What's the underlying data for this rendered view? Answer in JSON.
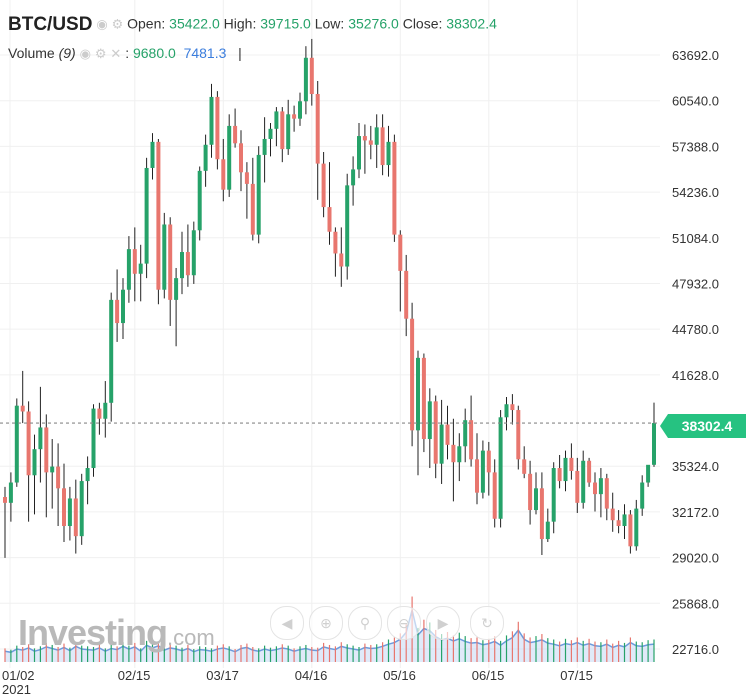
{
  "header": {
    "symbol": "BTC/USD",
    "open_label": "Open:",
    "open": "35422.0",
    "high_label": "High:",
    "high": "39715.0",
    "low_label": "Low:",
    "low": "35276.0",
    "close_label": "Close:",
    "close": "38302.4",
    "volume_label": "Volume",
    "volume_period": "(9)",
    "volume_value": "9680.0",
    "volume_ma": "7481.3",
    "separator": "|"
  },
  "icons": [
    "eye-icon",
    "gear-icon",
    "close-icon"
  ],
  "logo": {
    "brand": "Investing",
    "suffix": ".com"
  },
  "last_price_tag": "38302.4",
  "colors": {
    "up": "#26a269",
    "down": "#e8766e",
    "wick": "#222222",
    "last_line": "#888888",
    "tag": "#26c281",
    "volume_area": "#c7d9f4",
    "volume_line": "#6d9bdc"
  },
  "chart_data": {
    "type": "candlestick",
    "title": "BTC/USD",
    "yaxis": {
      "ticks": [
        "63692.0",
        "60540.0",
        "57388.0",
        "54236.0",
        "51084.0",
        "47932.0",
        "44780.0",
        "41628.0",
        "38302.4",
        "35324.0",
        "32172.0",
        "29020.0",
        "25868.0",
        "22716.0"
      ],
      "range": [
        21800,
        65200
      ]
    },
    "xaxis": {
      "ticks": [
        "01/02",
        "02/15",
        "03/17",
        "04/16",
        "05/16",
        "06/15",
        "07/15"
      ],
      "year": "2021"
    },
    "last_close": 38302.4,
    "candles": [
      [
        33200,
        33900,
        29000,
        32800
      ],
      [
        32800,
        34900,
        31500,
        34200
      ],
      [
        34200,
        40000,
        33900,
        39500
      ],
      [
        39500,
        41900,
        38300,
        39100
      ],
      [
        39100,
        39800,
        31500,
        34700
      ],
      [
        34700,
        37500,
        32000,
        36500
      ],
      [
        36500,
        40800,
        34200,
        38000
      ],
      [
        38000,
        38900,
        31800,
        34900
      ],
      [
        34900,
        37200,
        32400,
        35300
      ],
      [
        35300,
        36900,
        31200,
        33800
      ],
      [
        33800,
        35500,
        30100,
        31200
      ],
      [
        31200,
        33900,
        30200,
        33100
      ],
      [
        33100,
        34400,
        29300,
        30500
      ],
      [
        30500,
        34800,
        29900,
        34300
      ],
      [
        34300,
        36000,
        32700,
        35200
      ],
      [
        35200,
        39600,
        34600,
        39300
      ],
      [
        39300,
        39700,
        37500,
        38600
      ],
      [
        38600,
        41200,
        37300,
        39700
      ],
      [
        39700,
        47300,
        38400,
        46800
      ],
      [
        46800,
        48900,
        43900,
        45200
      ],
      [
        45200,
        48300,
        44100,
        47500
      ],
      [
        47500,
        51200,
        46600,
        50300
      ],
      [
        50300,
        51800,
        46700,
        48600
      ],
      [
        48600,
        50600,
        46700,
        49300
      ],
      [
        49300,
        56600,
        48300,
        55900
      ],
      [
        55900,
        58300,
        55100,
        57700
      ],
      [
        57700,
        57900,
        46500,
        47500
      ],
      [
        47500,
        52800,
        46900,
        52000
      ],
      [
        52000,
        52500,
        45000,
        46800
      ],
      [
        46800,
        49000,
        43600,
        48300
      ],
      [
        48300,
        51500,
        47200,
        50100
      ],
      [
        50100,
        52000,
        47700,
        48500
      ],
      [
        48500,
        52200,
        47900,
        51600
      ],
      [
        51600,
        56000,
        50900,
        55700
      ],
      [
        55700,
        58200,
        54600,
        57500
      ],
      [
        57500,
        61700,
        56600,
        60800
      ],
      [
        60800,
        61200,
        55800,
        56500
      ],
      [
        56500,
        57900,
        53600,
        54400
      ],
      [
        54400,
        59600,
        53900,
        58800
      ],
      [
        58800,
        60000,
        57300,
        57600
      ],
      [
        57600,
        58500,
        54300,
        55600
      ],
      [
        55600,
        56300,
        52400,
        54800
      ],
      [
        54800,
        56600,
        50900,
        51300
      ],
      [
        51300,
        57400,
        50700,
        56800
      ],
      [
        56800,
        59400,
        54900,
        57900
      ],
      [
        57900,
        59000,
        56700,
        58600
      ],
      [
        58600,
        60100,
        57400,
        59800
      ],
      [
        59800,
        60100,
        56300,
        57200
      ],
      [
        57200,
        60600,
        56800,
        59600
      ],
      [
        59600,
        60200,
        58400,
        59300
      ],
      [
        59300,
        61100,
        58800,
        60500
      ],
      [
        60500,
        64300,
        59600,
        63500
      ],
      [
        63500,
        64800,
        60200,
        61000
      ],
      [
        61000,
        61900,
        53700,
        56200
      ],
      [
        56200,
        57000,
        52500,
        53200
      ],
      [
        53200,
        56300,
        50600,
        51500
      ],
      [
        51500,
        51800,
        48400,
        50000
      ],
      [
        50000,
        51800,
        47700,
        49100
      ],
      [
        49100,
        55500,
        48200,
        54700
      ],
      [
        54700,
        56700,
        53300,
        55800
      ],
      [
        55800,
        59000,
        55200,
        58100
      ],
      [
        58100,
        58900,
        55500,
        57800
      ],
      [
        57800,
        58800,
        56500,
        57500
      ],
      [
        57500,
        59600,
        55900,
        58700
      ],
      [
        58700,
        59600,
        55400,
        56100
      ],
      [
        56100,
        58800,
        55300,
        57700
      ],
      [
        57700,
        58200,
        50800,
        51300
      ],
      [
        51300,
        51600,
        46000,
        48800
      ],
      [
        48800,
        49900,
        44300,
        45500
      ],
      [
        45500,
        46600,
        36700,
        37800
      ],
      [
        37800,
        43300,
        34700,
        42800
      ],
      [
        42800,
        43100,
        36300,
        37200
      ],
      [
        37200,
        40700,
        35200,
        39800
      ],
      [
        39800,
        40200,
        34500,
        35500
      ],
      [
        35500,
        39900,
        34100,
        38200
      ],
      [
        38200,
        39500,
        35800,
        36800
      ],
      [
        36800,
        38600,
        32900,
        35600
      ],
      [
        35600,
        37600,
        34300,
        36700
      ],
      [
        36700,
        39300,
        35600,
        38500
      ],
      [
        38500,
        40200,
        35300,
        35800
      ],
      [
        35800,
        37600,
        32700,
        33500
      ],
      [
        33500,
        37100,
        33100,
        36400
      ],
      [
        36400,
        37000,
        33300,
        34900
      ],
      [
        34900,
        35800,
        31100,
        31700
      ],
      [
        31700,
        39200,
        31100,
        38700
      ],
      [
        38700,
        40100,
        37800,
        39600
      ],
      [
        39600,
        40300,
        38200,
        39200
      ],
      [
        39200,
        39500,
        35100,
        35800
      ],
      [
        35800,
        36700,
        34500,
        34800
      ],
      [
        34800,
        35700,
        31300,
        32300
      ],
      [
        32300,
        34900,
        32000,
        33800
      ],
      [
        33800,
        34900,
        29200,
        30300
      ],
      [
        30300,
        32400,
        30100,
        31500
      ],
      [
        31500,
        35600,
        30700,
        35200
      ],
      [
        35200,
        36100,
        33800,
        34300
      ],
      [
        34300,
        36400,
        33600,
        35900
      ],
      [
        35900,
        36900,
        34400,
        35000
      ],
      [
        35000,
        35900,
        32100,
        32800
      ],
      [
        32800,
        36400,
        32400,
        35700
      ],
      [
        35700,
        35900,
        33900,
        34200
      ],
      [
        34200,
        34900,
        32200,
        33400
      ],
      [
        33400,
        35200,
        31800,
        34500
      ],
      [
        34500,
        34800,
        31600,
        32400
      ],
      [
        32400,
        33500,
        30800,
        31600
      ],
      [
        31600,
        32300,
        30700,
        31200
      ],
      [
        31200,
        32700,
        30300,
        32000
      ],
      [
        32000,
        32300,
        29300,
        29800
      ],
      [
        29800,
        33000,
        29500,
        32400
      ],
      [
        32400,
        34700,
        31900,
        34200
      ],
      [
        34200,
        35400,
        33900,
        35422
      ],
      [
        35422,
        39715,
        35276,
        38302.4
      ]
    ],
    "volume": [
      2.0,
      1.8,
      2.4,
      2.2,
      2.6,
      2.0,
      2.3,
      2.8,
      2.5,
      2.2,
      2.7,
      2.1,
      2.9,
      2.4,
      2.3,
      2.2,
      2.6,
      2.0,
      2.5,
      2.3,
      2.9,
      2.4,
      2.8,
      2.0,
      3.1,
      2.6,
      3.0,
      2.2,
      2.6,
      2.4,
      2.1,
      2.5,
      1.9,
      2.3,
      2.2,
      2.0,
      2.4,
      2.6,
      2.3,
      1.9,
      2.5,
      2.7,
      2.2,
      2.0,
      2.4,
      2.1,
      2.3,
      2.6,
      2.4,
      2.0,
      2.3,
      2.5,
      2.2,
      2.1,
      2.8,
      2.5,
      2.3,
      2.9,
      2.6,
      2.4,
      2.2,
      2.7,
      2.5,
      2.6,
      2.9,
      3.3,
      3.6,
      4.2,
      5.5,
      9.6,
      5.0,
      6.2,
      5.8,
      4.7,
      4.1,
      4.4,
      3.9,
      4.3,
      3.8,
      3.5,
      3.6,
      3.2,
      3.4,
      3.8,
      3.1,
      3.9,
      4.5,
      5.9,
      4.2,
      3.6,
      3.8,
      4.1,
      3.5,
      3.3,
      3.0,
      3.4,
      3.2,
      3.6,
      3.1,
      3.4,
      3.0,
      2.9,
      3.3,
      2.7,
      3.1,
      2.8,
      3.6,
      3.0,
      2.9,
      3.2,
      3.3
    ]
  }
}
